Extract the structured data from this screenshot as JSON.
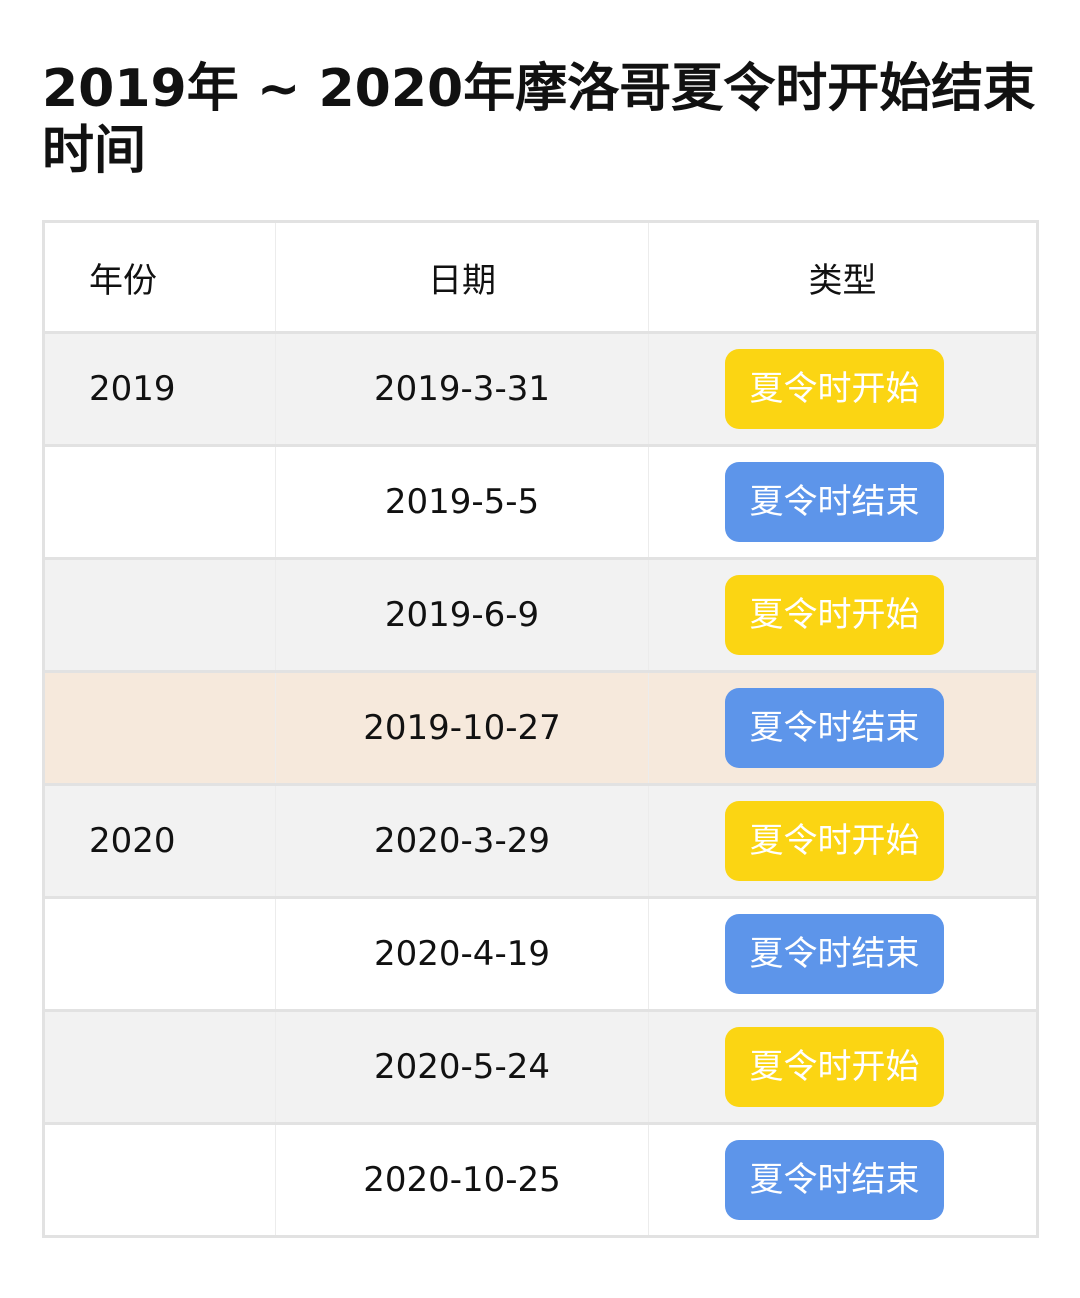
{
  "title": "2019年 ~ 2020年摩洛哥夏令时开始结束时间",
  "headers": [
    "年份",
    "日期",
    "类型"
  ],
  "colors": {
    "start": "#fbd513",
    "end": "#5d95ea",
    "highlight_row": "#f6e9dc"
  },
  "rows": [
    {
      "year": "2019",
      "date": "2019-3-31",
      "type": "夏令时开始",
      "kind": "start"
    },
    {
      "year": "",
      "date": "2019-5-5",
      "type": "夏令时结束",
      "kind": "end"
    },
    {
      "year": "",
      "date": "2019-6-9",
      "type": "夏令时开始",
      "kind": "start"
    },
    {
      "year": "",
      "date": "2019-10-27",
      "type": "夏令时结束",
      "kind": "end",
      "highlighted": true
    },
    {
      "year": "2020",
      "date": "2020-3-29",
      "type": "夏令时开始",
      "kind": "start"
    },
    {
      "year": "",
      "date": "2020-4-19",
      "type": "夏令时结束",
      "kind": "end"
    },
    {
      "year": "",
      "date": "2020-5-24",
      "type": "夏令时开始",
      "kind": "start"
    },
    {
      "year": "",
      "date": "2020-10-25",
      "type": "夏令时结束",
      "kind": "end"
    }
  ]
}
